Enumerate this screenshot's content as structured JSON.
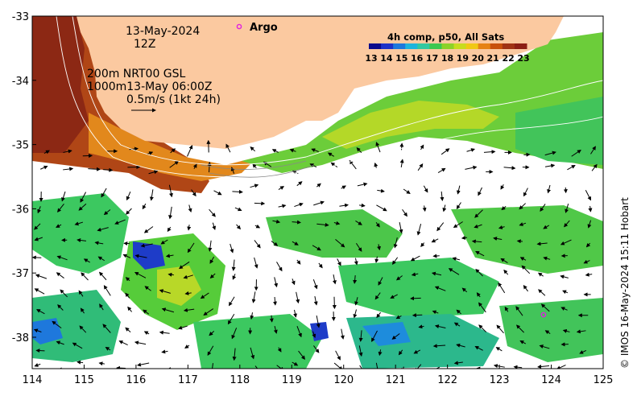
{
  "map": {
    "lon_range": [
      114,
      125
    ],
    "lat_range": [
      -38.5,
      -33
    ],
    "x_ticks": [
      "114",
      "115",
      "116",
      "117",
      "118",
      "119",
      "120",
      "121",
      "122",
      "123",
      "124",
      "125"
    ],
    "y_ticks": [
      "-33",
      "-34",
      "-35",
      "-36",
      "-37",
      "-38"
    ],
    "land_color": "#fbc9a0",
    "land_label": "",
    "background_color": "#ffffff"
  },
  "annotations": {
    "date": "13-May-2024",
    "time": "12Z",
    "contour_info": "200m  NRT00 GSL",
    "contour_info2": "1000m13-May 06:00Z",
    "velocity_scale": "0.5m/s (1kt 24h)",
    "argo_label": "Argo",
    "credit": "© IMOS 16-May-2024 15:11 Hobart"
  },
  "colorbar": {
    "title": "4h comp, p50, All Sats",
    "labels": [
      "13",
      "14",
      "15",
      "16",
      "17",
      "18",
      "19",
      "20",
      "21",
      "22",
      "23"
    ],
    "colors": [
      "#0a0a8c",
      "#1e32c8",
      "#1e78dc",
      "#1eb4dc",
      "#32c8a0",
      "#3cc850",
      "#8cd228",
      "#c8dc1e",
      "#f0c814",
      "#e68214",
      "#c8500a",
      "#a03214",
      "#8c1e14"
    ]
  },
  "argo_float": {
    "lon": 123.85,
    "lat": -37.65,
    "color": "#e020e0"
  }
}
